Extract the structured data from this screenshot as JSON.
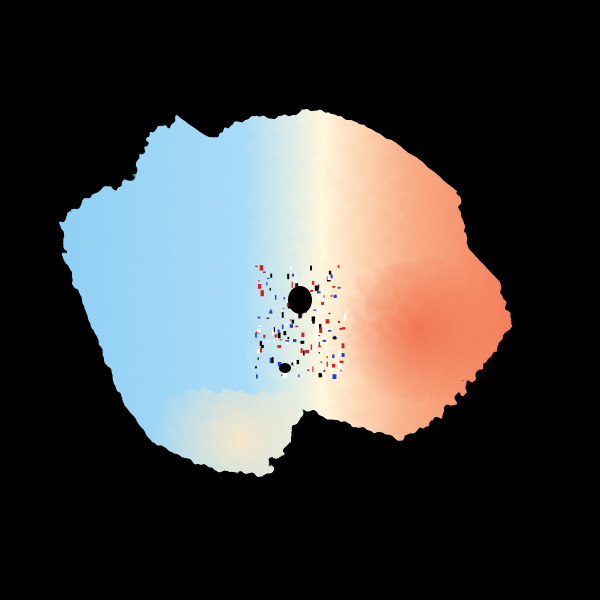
{
  "image": {
    "background_color": "#000000",
    "colormap": [
      "#8fd0f5",
      "#a9dcf7",
      "#fff6dc",
      "#f9b089",
      "#f27a55"
    ],
    "core_color": "#ee6a48",
    "noise_colors": [
      "#d62020",
      "#2040d0",
      "#000000",
      "#ffffff"
    ]
  }
}
